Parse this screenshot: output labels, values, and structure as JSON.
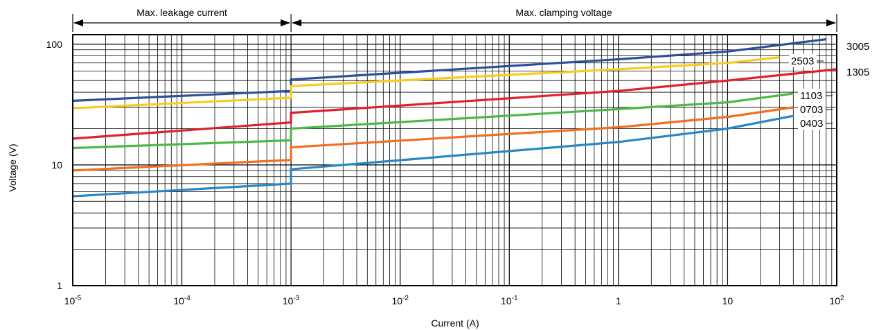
{
  "chart_data": {
    "type": "line",
    "xlabel": "Current (A)",
    "ylabel": "Voltage (V)",
    "xscale": "log",
    "yscale": "log",
    "xlim": [
      1e-05,
      100
    ],
    "ylim": [
      1,
      120
    ],
    "grid": true,
    "xticks": [
      {
        "base": "10",
        "exp": "-5"
      },
      {
        "base": "10",
        "exp": "-4"
      },
      {
        "base": "10",
        "exp": "-3"
      },
      {
        "base": "10",
        "exp": "-2"
      },
      {
        "base": "10",
        "exp": "-1"
      },
      {
        "base": "1",
        "exp": ""
      },
      {
        "base": "10",
        "exp": ""
      },
      {
        "base": "10",
        "exp": "2"
      }
    ],
    "yticks": [
      "1",
      "10",
      "100"
    ],
    "regions": [
      {
        "label": "Max. leakage current",
        "from": 1e-05,
        "to": 0.001
      },
      {
        "label": "Max. clamping voltage",
        "from": 0.001,
        "to": 100
      }
    ],
    "series": [
      {
        "name": "3005",
        "color": "#2e4f9a",
        "points": [
          [
            1e-05,
            34
          ],
          [
            0.001,
            41
          ],
          [
            0.001,
            51
          ],
          [
            1,
            75
          ],
          [
            10,
            87
          ],
          [
            80,
            110
          ]
        ]
      },
      {
        "name": "2503",
        "color": "#f7cc1d",
        "points": [
          [
            1e-05,
            29.5
          ],
          [
            0.001,
            36
          ],
          [
            0.001,
            45
          ],
          [
            1,
            62
          ],
          [
            10,
            70
          ],
          [
            30,
            78
          ]
        ]
      },
      {
        "name": "1305",
        "color": "#e0202a",
        "points": [
          [
            1e-05,
            16.5
          ],
          [
            0.001,
            22.5
          ],
          [
            0.001,
            27
          ],
          [
            1,
            41
          ],
          [
            10,
            50
          ],
          [
            100,
            62
          ]
        ]
      },
      {
        "name": "1103",
        "color": "#4cb848",
        "points": [
          [
            1e-05,
            13.8
          ],
          [
            0.001,
            16
          ],
          [
            0.001,
            20
          ],
          [
            1,
            29
          ],
          [
            10,
            33
          ],
          [
            40,
            39
          ]
        ]
      },
      {
        "name": "0703",
        "color": "#f07020",
        "points": [
          [
            1e-05,
            9
          ],
          [
            0.001,
            11
          ],
          [
            0.001,
            14
          ],
          [
            1,
            20.5
          ],
          [
            10,
            25
          ],
          [
            40,
            30
          ]
        ]
      },
      {
        "name": "0403",
        "color": "#2a86c8",
        "points": [
          [
            1e-05,
            5.5
          ],
          [
            0.001,
            7
          ],
          [
            0.001,
            9.2
          ],
          [
            1,
            15.5
          ],
          [
            10,
            20
          ],
          [
            40,
            25.5
          ]
        ]
      }
    ]
  }
}
